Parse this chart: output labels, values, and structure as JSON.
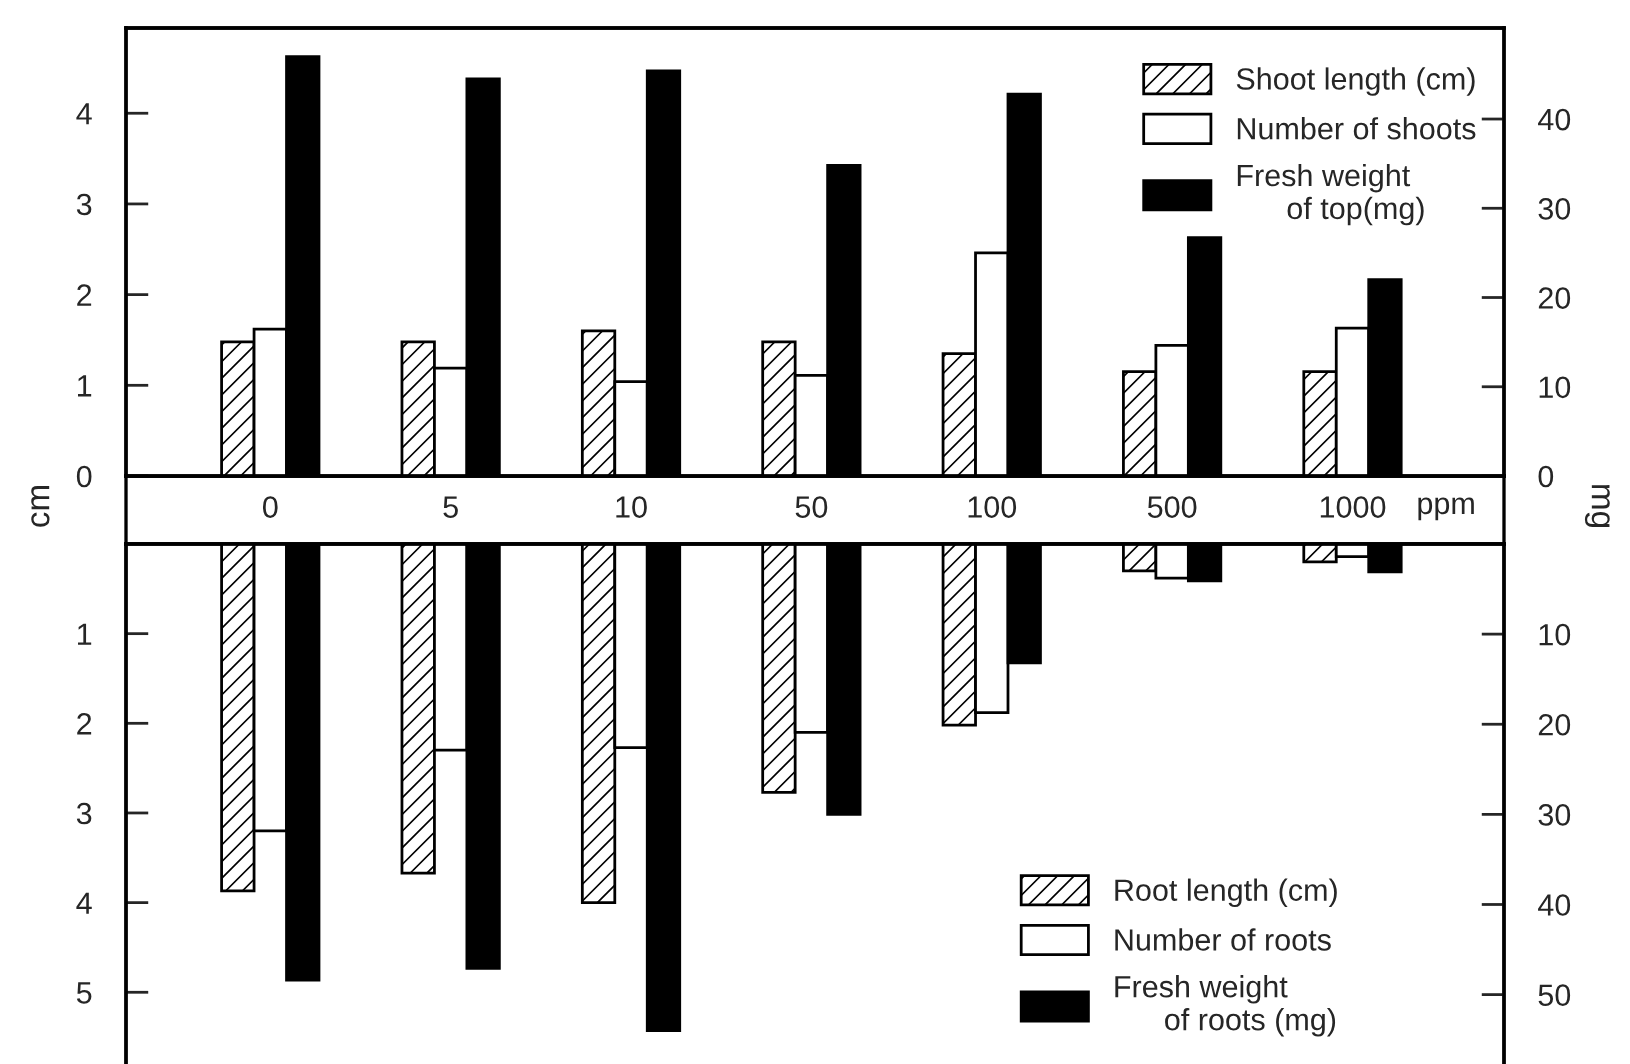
{
  "chart_data": [
    {
      "type": "bar",
      "xlabel": "ppm",
      "ylabel": "cm",
      "y2label": "mg",
      "categories": [
        "0",
        "5",
        "10",
        "50",
        "100",
        "500",
        "1000"
      ],
      "series": [
        {
          "name": "Shoot length (cm)",
          "color": "#000000",
          "values": [
            1.48,
            1.48,
            1.6,
            1.48,
            1.35,
            1.15,
            1.15
          ]
        },
        {
          "name": "Number of shoots",
          "color": "#ffffff",
          "values": [
            1.62,
            1.19,
            1.04,
            1.11,
            2.46,
            1.44,
            1.63
          ]
        },
        {
          "name": "Fresh weight\n      of top(mg)",
          "color": "#000000",
          "axis": "y2",
          "values": [
            47,
            44.5,
            45.4,
            34.8,
            42.8,
            26.7,
            22
          ]
        }
      ],
      "ylim": [
        0,
        4.94
      ],
      "yticks": [
        0,
        1,
        2,
        3,
        4
      ],
      "y2lim": [
        0,
        50.2
      ],
      "y2ticks": [
        0,
        10,
        20,
        30,
        40
      ],
      "legend": "top right",
      "grid": false
    },
    {
      "type": "bar",
      "categories": [
        "0",
        "5",
        "10",
        "50",
        "100",
        "500",
        "1000"
      ],
      "series": [
        {
          "name": "Root length (cm)",
          "color": "#000000",
          "values": [
            3.87,
            3.67,
            4.0,
            2.77,
            2.02,
            0.3,
            0.2
          ]
        },
        {
          "name": "Number of roots",
          "color": "#ffffff",
          "values": [
            3.2,
            2.3,
            2.27,
            2.1,
            1.88,
            0.38,
            0.14
          ]
        },
        {
          "name": "Fresh weight\n      of roots (mg)",
          "color": "#000000",
          "axis": "y2",
          "values": [
            48.4,
            47.1,
            54,
            30,
            13.2,
            4.1,
            3.1
          ]
        }
      ],
      "ylim": [
        5.8,
        0
      ],
      "yticks": [
        1,
        2,
        3,
        4,
        5
      ],
      "y2lim": [
        57.7,
        0
      ],
      "y2ticks": [
        10,
        20,
        30,
        40,
        50
      ],
      "tick_labels": "y",
      "legend": "bottom right",
      "grid": false
    }
  ]
}
